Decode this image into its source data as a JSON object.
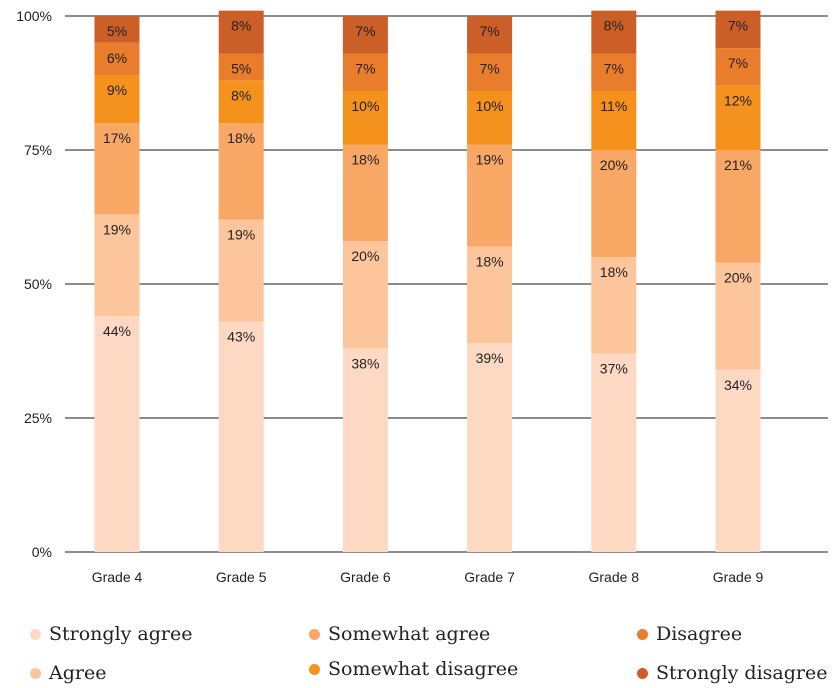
{
  "chart_data": {
    "type": "bar",
    "stacked": true,
    "categories": [
      "Grade 4",
      "Grade 5",
      "Grade 6",
      "Grade 7",
      "Grade 8",
      "Grade 9"
    ],
    "series": [
      {
        "name": "Strongly agree",
        "color": "#fdd9c4",
        "values": [
          44,
          43,
          38,
          39,
          37,
          34
        ],
        "labels": [
          "44%",
          "43%",
          "38%",
          "39%",
          "37%",
          "34%"
        ]
      },
      {
        "name": "Agree",
        "color": "#fcc59c",
        "values": [
          19,
          19,
          20,
          18,
          18,
          20
        ],
        "labels": [
          "19%",
          "19%",
          "20%",
          "18%",
          "18%",
          "20%"
        ]
      },
      {
        "name": "Somewhat agree",
        "color": "#f8a765",
        "values": [
          17,
          18,
          18,
          19,
          20,
          21
        ],
        "labels": [
          "17%",
          "18%",
          "18%",
          "19%",
          "20%",
          "21%"
        ]
      },
      {
        "name": "Somewhat disagree",
        "color": "#f5921e",
        "values": [
          9,
          8,
          10,
          10,
          11,
          12
        ],
        "labels": [
          "9%",
          "8%",
          "10%",
          "10%",
          "11%",
          "12%"
        ]
      },
      {
        "name": "Disagree",
        "color": "#ea7d2b",
        "values": [
          6,
          5,
          7,
          7,
          7,
          7
        ],
        "labels": [
          "6%",
          "5%",
          "7%",
          "7%",
          "7%",
          "7%"
        ]
      },
      {
        "name": "Strongly disagree",
        "color": "#cc5f28",
        "values": [
          5,
          8,
          7,
          7,
          8,
          7
        ],
        "labels": [
          "5%",
          "8%",
          "7%",
          "7%",
          "8%",
          "7%"
        ]
      }
    ],
    "y_ticks": [
      "0%",
      "25%",
      "50%",
      "75%",
      "100%"
    ],
    "ylim": [
      0,
      100
    ],
    "grid": true,
    "legend_position": "bottom"
  }
}
